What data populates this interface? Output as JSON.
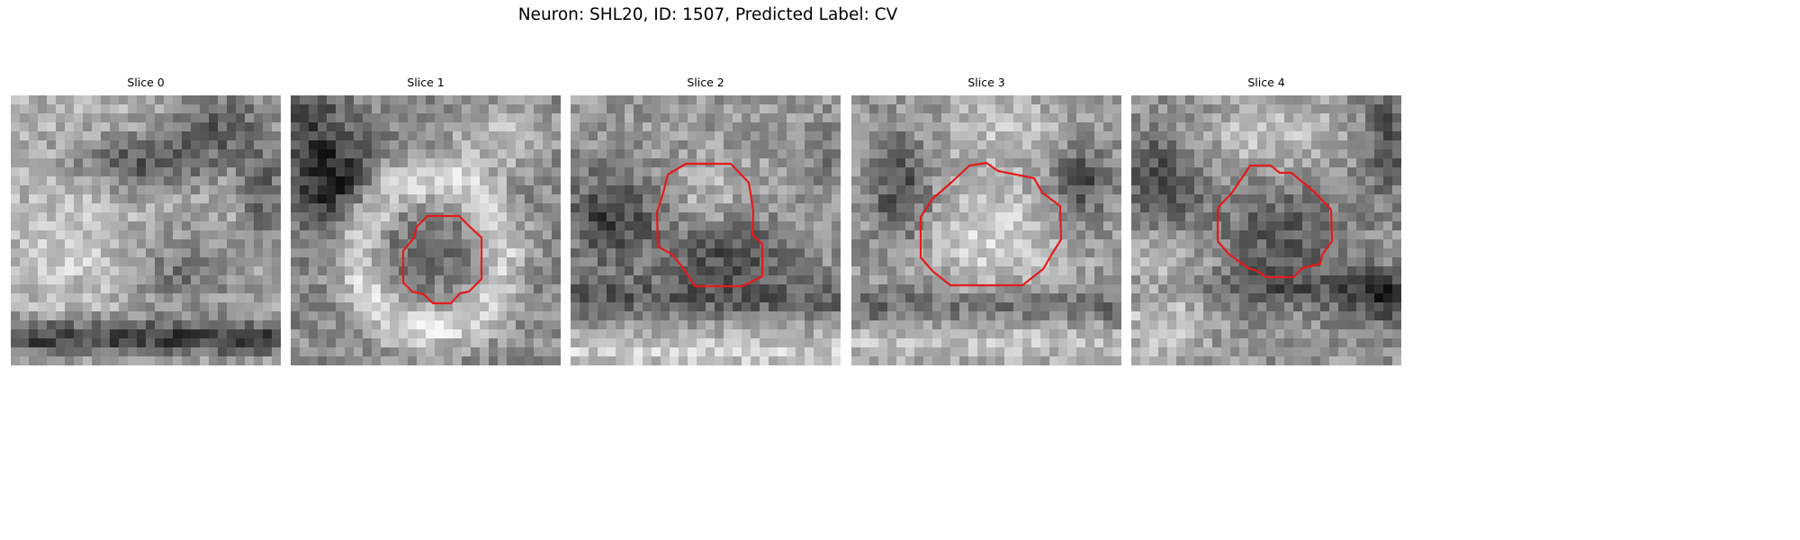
{
  "figure": {
    "suptitle": "Neuron: SHL20, ID: 1507, Predicted Label: CV"
  },
  "contour_color": "#e41a1c",
  "panels": [
    {
      "title": "Slice 0"
    },
    {
      "title": "Slice 1"
    },
    {
      "title": "Slice 2"
    },
    {
      "title": "Slice 3"
    },
    {
      "title": "Slice 4"
    }
  ]
}
